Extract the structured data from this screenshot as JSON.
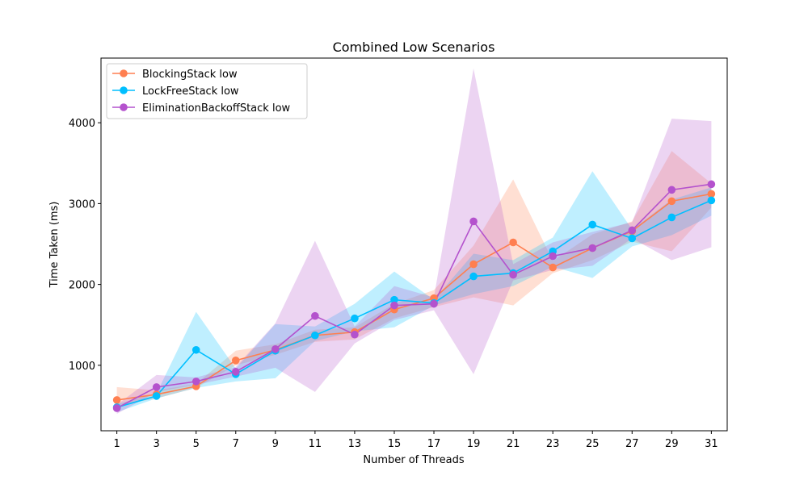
{
  "chart_data": {
    "type": "line",
    "title": "Combined Low Scenarios",
    "xlabel": "Number of Threads",
    "ylabel": "Time Taken (ms)",
    "x": [
      1,
      3,
      5,
      7,
      9,
      11,
      13,
      15,
      17,
      19,
      21,
      23,
      25,
      27,
      29,
      31
    ],
    "xlim": [
      0.2,
      31.8
    ],
    "ylim": [
      190,
      4800
    ],
    "yticks": [
      1000,
      2000,
      3000,
      4000
    ],
    "legend_position": "upper-left",
    "band_opacity": 0.25,
    "series": [
      {
        "name": "BlockingStack low",
        "color": "#ff7f50",
        "values": [
          570,
          640,
          740,
          1060,
          1190,
          1370,
          1410,
          1690,
          1830,
          2250,
          2520,
          2210,
          2450,
          2660,
          3030,
          3120
        ],
        "lower": [
          500,
          590,
          720,
          1000,
          1130,
          1290,
          1320,
          1580,
          1720,
          1840,
          1740,
          2140,
          2300,
          2530,
          2410,
          2950
        ],
        "upper": [
          730,
          690,
          770,
          1180,
          1260,
          1440,
          1470,
          1760,
          1930,
          2480,
          3300,
          2290,
          2620,
          2780,
          3650,
          3250
        ]
      },
      {
        "name": "LockFreeStack low",
        "color": "#00bfff",
        "values": [
          480,
          620,
          1190,
          890,
          1180,
          1370,
          1580,
          1810,
          1770,
          2100,
          2140,
          2410,
          2740,
          2570,
          2830,
          3040
        ],
        "lower": [
          420,
          590,
          720,
          800,
          840,
          1300,
          1420,
          1470,
          1740,
          1880,
          1980,
          2220,
          2080,
          2470,
          2610,
          2850
        ],
        "upper": [
          520,
          650,
          1660,
          960,
          1510,
          1480,
          1760,
          2160,
          1810,
          2380,
          2300,
          2580,
          3400,
          2680,
          3050,
          3200
        ]
      },
      {
        "name": "EliminationBackoffStack low",
        "color": "#b452cd",
        "values": [
          470,
          730,
          800,
          920,
          1200,
          1610,
          1380,
          1740,
          1760,
          2780,
          2120,
          2350,
          2450,
          2670,
          3170,
          3240
        ],
        "lower": [
          400,
          670,
          760,
          860,
          970,
          670,
          1270,
          1560,
          1680,
          890,
          2050,
          2180,
          2230,
          2570,
          2300,
          2460
        ],
        "upper": [
          510,
          880,
          850,
          980,
          1520,
          2540,
          1480,
          1980,
          1840,
          4670,
          2250,
          2520,
          2650,
          2770,
          4050,
          4020
        ]
      }
    ]
  }
}
